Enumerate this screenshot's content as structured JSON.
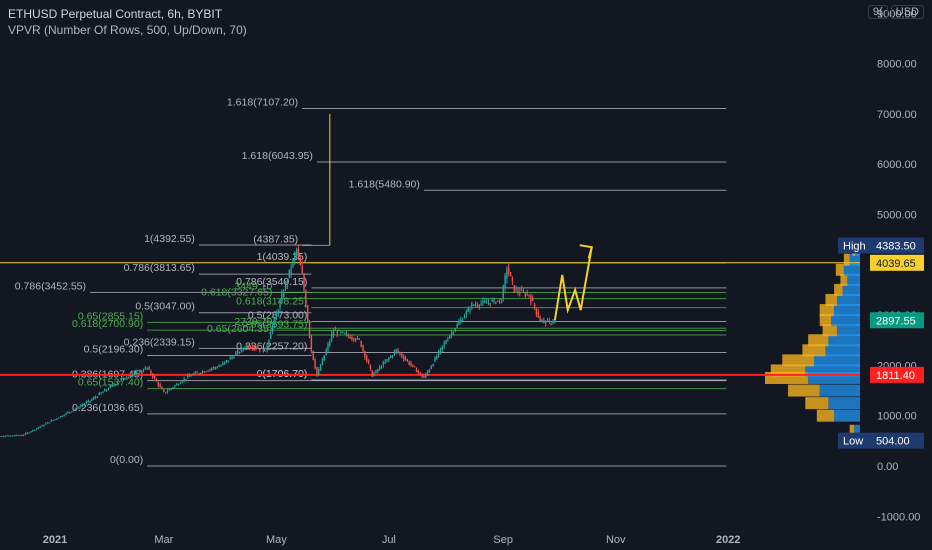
{
  "header": {
    "title": "ETHUSD Perpetual Contract, 6h, BYBIT",
    "indicator": "VPVR (Number Of Rows, 500, Up/Down, 70)",
    "currency_prefix": "9(",
    "currency": "USD"
  },
  "colors": {
    "background": "#131722",
    "text": "#b2b5be",
    "fib_gray": "#b2b5be",
    "fib_green": "#4caf50",
    "up": "#26a69a",
    "down": "#ef5350",
    "vp_up": "#2196f3",
    "vp_down": "#f6b11e",
    "highlight_red": "#ff2020",
    "highlight_yellow": "#f7d02c",
    "label_navy": "#1e3a6e",
    "label_teal": "#089981"
  },
  "chart_data": {
    "type": "candlestick",
    "symbol": "ETHUSD",
    "interval": "6h",
    "y_axis_labels": [
      "9000.00",
      "8000.00",
      "7000.00",
      "6000.00",
      "5000.00",
      "4000.00",
      "3000.00",
      "2000.00",
      "1000.00",
      "0.00",
      "-1000.00"
    ],
    "ylim": [
      -1000,
      9000
    ],
    "x_tick_labels": [
      "2021",
      "Mar",
      "May",
      "Jul",
      "Sep",
      "Nov",
      "2022"
    ],
    "price_path": [
      {
        "date": "2020-11-20",
        "price": 560
      },
      {
        "date": "2020-12-15",
        "price": 620
      },
      {
        "date": "2021-01-10",
        "price": 1100
      },
      {
        "date": "2021-01-20",
        "price": 1300
      },
      {
        "date": "2021-02-05",
        "price": 1700
      },
      {
        "date": "2021-02-20",
        "price": 1950
      },
      {
        "date": "2021-03-01",
        "price": 1450
      },
      {
        "date": "2021-03-15",
        "price": 1800
      },
      {
        "date": "2021-04-01",
        "price": 2000
      },
      {
        "date": "2021-04-15",
        "price": 2400
      },
      {
        "date": "2021-04-25",
        "price": 2300
      },
      {
        "date": "2021-05-05",
        "price": 3500
      },
      {
        "date": "2021-05-12",
        "price": 4300
      },
      {
        "date": "2021-05-15",
        "price": 3800
      },
      {
        "date": "2021-05-20",
        "price": 2300
      },
      {
        "date": "2021-05-23",
        "price": 1800
      },
      {
        "date": "2021-06-01",
        "price": 2700
      },
      {
        "date": "2021-06-15",
        "price": 2500
      },
      {
        "date": "2021-06-22",
        "price": 1800
      },
      {
        "date": "2021-07-05",
        "price": 2300
      },
      {
        "date": "2021-07-20",
        "price": 1750
      },
      {
        "date": "2021-08-01",
        "price": 2500
      },
      {
        "date": "2021-08-15",
        "price": 3200
      },
      {
        "date": "2021-08-31",
        "price": 3300
      },
      {
        "date": "2021-09-03",
        "price": 3950
      },
      {
        "date": "2021-09-07",
        "price": 3500
      },
      {
        "date": "2021-09-15",
        "price": 3400
      },
      {
        "date": "2021-09-21",
        "price": 2900
      },
      {
        "date": "2021-09-26",
        "price": 2850
      },
      {
        "date": "2021-09-29",
        "price": 2900
      }
    ],
    "projection": [
      {
        "date": "2021-09-29",
        "price": 2900
      },
      {
        "date": "2021-10-03",
        "price": 3800
      },
      {
        "date": "2021-10-06",
        "price": 3100
      },
      {
        "date": "2021-10-10",
        "price": 3500
      },
      {
        "date": "2021-10-13",
        "price": 3100
      },
      {
        "date": "2021-10-19",
        "price": 4350
      }
    ],
    "fib_levels": [
      {
        "label": "1.618(7107.20)",
        "value": 7107.2,
        "color": "gray",
        "from": "2021-05-15",
        "to": "2021-12-31"
      },
      {
        "label": "1.618(6043.95)",
        "value": 6043.95,
        "color": "gray",
        "from": "2021-05-23",
        "to": "2021-12-31"
      },
      {
        "label": "1.618(5480.90)",
        "value": 5480.9,
        "color": "gray",
        "from": "2021-07-20",
        "to": "2021-12-31"
      },
      {
        "label": "1(4392.55)",
        "value": 4392.55,
        "color": "gray",
        "from": "2021-03-20",
        "to": "2021-05-20"
      },
      {
        "label": "(4387.35)",
        "value": 4387.35,
        "color": "gray",
        "from": "2021-05-15",
        "to": "2021-05-30"
      },
      {
        "label": "1(4039.35)",
        "value": 4039.35,
        "color": "gray",
        "from": "2021-05-20",
        "to": "2021-12-31"
      },
      {
        "label": "0.786(3813.65)",
        "value": 3813.65,
        "color": "gray",
        "from": "2021-03-20",
        "to": "2021-05-20"
      },
      {
        "label": "0.786(3540.15)",
        "value": 3540.15,
        "color": "gray",
        "from": "2021-05-20",
        "to": "2021-12-31"
      },
      {
        "label": "0.786(3452.55)",
        "value": 3452.55,
        "color": "gray",
        "from": "2021-01-20",
        "to": "2021-05-20"
      },
      {
        "label": "3449.10",
        "value": 3449.1,
        "color": "green",
        "from": "2021-05-01",
        "to": "2021-12-31"
      },
      {
        "label": "0.618(3327.65)",
        "value": 3327.65,
        "color": "green",
        "from": "2021-05-01",
        "to": "2021-12-31"
      },
      {
        "label": "0.618(3148.25)",
        "value": 3148.25,
        "color": "green",
        "from": "2021-05-20",
        "to": "2021-12-31"
      },
      {
        "label": "0.5(3047.00)",
        "value": 3047,
        "color": "gray",
        "from": "2021-03-20",
        "to": "2021-05-20"
      },
      {
        "label": "0.5(2873.00)",
        "value": 2873,
        "color": "gray",
        "from": "2021-05-20",
        "to": "2021-12-31"
      },
      {
        "label": "0.65(2855.15)",
        "value": 2855.15,
        "color": "green",
        "from": "2021-02-20",
        "to": "2021-05-20"
      },
      {
        "label": "0.618(2700.90)",
        "value": 2700.9,
        "color": "green",
        "from": "2021-02-20",
        "to": "2021-05-20"
      },
      {
        "label": "2739.70",
        "value": 2739.7,
        "color": "green",
        "from": "2021-05-01",
        "to": "2021-12-31"
      },
      {
        "label": "0.65(2693.75)",
        "value": 2693.75,
        "color": "green",
        "from": "2021-05-20",
        "to": "2021-12-31"
      },
      {
        "label": "0.65(2604.35)",
        "value": 2604.35,
        "color": "green",
        "from": "2021-05-01",
        "to": "2021-12-31"
      },
      {
        "label": "0.236(2339.15)",
        "value": 2339.15,
        "color": "gray",
        "from": "2021-03-20",
        "to": "2021-05-20"
      },
      {
        "label": "0.236(2257.20)",
        "value": 2257.2,
        "color": "gray",
        "from": "2021-05-20",
        "to": "2021-12-31"
      },
      {
        "label": "0.5(2196.30)",
        "value": 2196.3,
        "color": "gray",
        "from": "2021-02-20",
        "to": "2021-05-20"
      },
      {
        "label": "0.386(1697.45)",
        "value": 1697.45,
        "color": "gray",
        "from": "2021-02-20",
        "to": "2021-12-31"
      },
      {
        "label": "(1706.70)",
        "value": 1706.7,
        "color": "gray",
        "from": "2021-05-20",
        "to": "2021-12-31"
      },
      {
        "label": "0(1706.70)",
        "value": 1706.7,
        "color": "gray",
        "from": "2021-05-20",
        "to": "2021-12-31"
      },
      {
        "label": "0.65(1537.40)",
        "value": 1537.4,
        "color": "green",
        "from": "2021-02-20",
        "to": "2021-12-31"
      },
      {
        "label": "0.236(1036.65)",
        "value": 1036.65,
        "color": "gray",
        "from": "2021-02-20",
        "to": "2021-12-31"
      },
      {
        "label": "0(0.00)",
        "value": 0,
        "color": "gray",
        "from": "2021-02-20",
        "to": "2021-12-31"
      }
    ],
    "horizontal_lines": [
      {
        "value": 4039.65,
        "color": "yellow",
        "extends": "full"
      },
      {
        "value": 1811.4,
        "color": "red",
        "extends": "full"
      }
    ],
    "vertical_line": {
      "date": "2021-05-30",
      "from": 4392,
      "to": 7000
    },
    "price_labels": [
      {
        "text": "4383.50",
        "value": 4383.5,
        "tag": "High",
        "style": "navy"
      },
      {
        "text": "4039.65",
        "value": 4039.65,
        "style": "yellow"
      },
      {
        "text": "2897.55",
        "value": 2897.55,
        "style": "teal"
      },
      {
        "text": "1811.40",
        "value": 1811.4,
        "style": "red"
      },
      {
        "text": "504.00",
        "value": 504,
        "tag": "Low",
        "style": "navy"
      }
    ],
    "volume_profile": [
      {
        "price": 700,
        "up": 10,
        "down": 8
      },
      {
        "price": 1000,
        "up": 45,
        "down": 30
      },
      {
        "price": 1250,
        "up": 55,
        "down": 40
      },
      {
        "price": 1500,
        "up": 70,
        "down": 55
      },
      {
        "price": 1750,
        "up": 90,
        "down": 75
      },
      {
        "price": 1900,
        "up": 95,
        "down": 60
      },
      {
        "price": 2100,
        "up": 80,
        "down": 55
      },
      {
        "price": 2300,
        "up": 60,
        "down": 40
      },
      {
        "price": 2500,
        "up": 55,
        "down": 35
      },
      {
        "price": 2700,
        "up": 40,
        "down": 25
      },
      {
        "price": 2900,
        "up": 50,
        "down": 20
      },
      {
        "price": 3100,
        "up": 45,
        "down": 25
      },
      {
        "price": 3300,
        "up": 40,
        "down": 20
      },
      {
        "price": 3500,
        "up": 30,
        "down": 15
      },
      {
        "price": 3700,
        "up": 22,
        "down": 12
      },
      {
        "price": 3900,
        "up": 28,
        "down": 14
      },
      {
        "price": 4100,
        "up": 18,
        "down": 10
      },
      {
        "price": 4300,
        "up": 8,
        "down": 5
      }
    ]
  }
}
